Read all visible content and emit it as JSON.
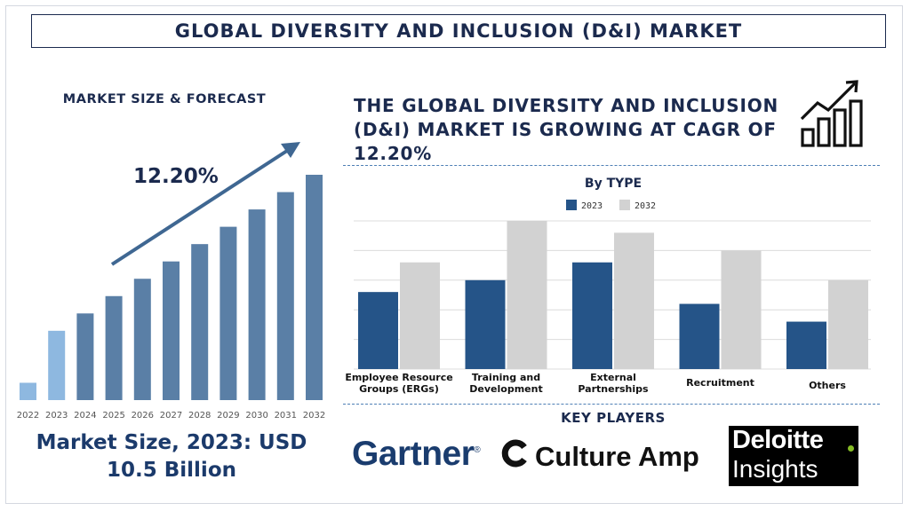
{
  "page": {
    "title": "GLOBAL DIVERSITY AND INCLUSION (D&I) MARKET",
    "left_heading": "MARKET SIZE & FORECAST",
    "market_size_line1": "Market Size, 2023: USD",
    "market_size_line2": "10.5 Billion",
    "headline_line1": "THE GLOBAL DIVERSITY AND INCLUSION",
    "headline_line2": "(D&I) MARKET IS GROWING AT CAGR OF",
    "headline_line3": "12.20%",
    "by_type": "By TYPE",
    "key_players": "KEY PLAYERS",
    "logos": {
      "gartner": "Gartner",
      "culture_amp": "Culture Amp",
      "deloitte_line1": "Deloitte",
      "deloitte_line2": "Insights"
    },
    "icons": [
      "growth-chart-icon",
      "culture-amp-logo-icon"
    ]
  },
  "chart_data": [
    {
      "type": "bar",
      "title": "",
      "categories": [
        "2022",
        "2023",
        "2024",
        "2025",
        "2026",
        "2027",
        "2028",
        "2029",
        "2030",
        "2031",
        "2032"
      ],
      "values": [
        1,
        4,
        5,
        6,
        7,
        8,
        9,
        10,
        11,
        12,
        13
      ],
      "ylim": [
        0,
        13.5
      ],
      "annotation": "12.20%",
      "colors": {
        "forecast": "#5a7fa6",
        "historic_2022": "#8eb8e0",
        "historic_2023": "#8eb8e0",
        "arrow": "#3f6792"
      },
      "grid": false
    },
    {
      "type": "bar",
      "title": "By TYPE",
      "categories": [
        "Employee Resource Groups (ERGs)",
        "Training and Development",
        "External Partnerships",
        "Recruitment",
        "Others"
      ],
      "series": [
        {
          "name": "2023",
          "values": [
            2.6,
            3.0,
            3.6,
            2.2,
            1.6
          ],
          "color": "#255488"
        },
        {
          "name": "2032",
          "values": [
            3.6,
            5.0,
            4.6,
            4.0,
            3.0
          ],
          "color": "#d2d2d2"
        }
      ],
      "ylim": [
        0,
        5
      ],
      "legend": "top-center",
      "grid": true
    }
  ]
}
